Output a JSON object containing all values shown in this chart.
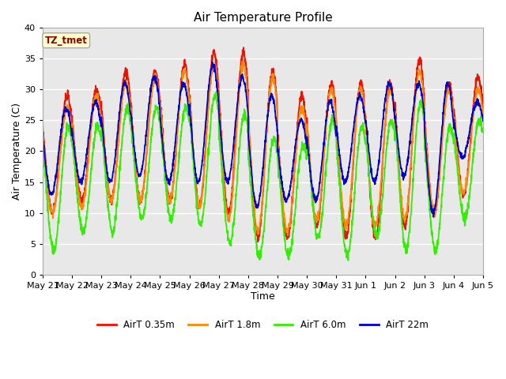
{
  "title": "Air Temperature Profile",
  "xlabel": "Time",
  "ylabel": "Air Temperature (C)",
  "ylim": [
    0,
    40
  ],
  "fig_bg_color": "#ffffff",
  "plot_bg_color": "#e8e8e8",
  "annotation_text": "TZ_tmet",
  "annotation_color": "#8b0000",
  "annotation_bg": "#ffffcc",
  "annotation_border": "#aaaaaa",
  "series_colors": {
    "AirT 0.35m": "#ee1100",
    "AirT 1.8m": "#ff8800",
    "AirT 6.0m": "#33ee00",
    "AirT 22m": "#0000cc"
  },
  "x_tick_labels": [
    "May 21",
    "May 22",
    "May 23",
    "May 24",
    "May 25",
    "May 26",
    "May 27",
    "May 28",
    "May 29",
    "May 30",
    "May 31",
    "Jun 1",
    "Jun 2",
    "Jun 3",
    "Jun 4",
    "Jun 5"
  ],
  "n_days": 15,
  "red_max": [
    29,
    30,
    33,
    33,
    34,
    36,
    36,
    33,
    29,
    31,
    31,
    31,
    35,
    31,
    32
  ],
  "red_min": [
    10,
    12,
    12,
    12,
    12,
    11,
    10,
    6,
    6,
    8,
    6,
    6,
    8,
    10,
    13
  ],
  "ora_max": [
    27,
    29,
    31,
    32,
    33,
    34,
    34,
    32,
    27,
    30,
    30,
    30,
    33,
    30,
    30
  ],
  "ora_min": [
    10,
    11,
    12,
    12,
    12,
    11,
    9,
    7,
    7,
    9,
    8,
    8,
    9,
    10,
    13
  ],
  "grn_max": [
    24,
    24,
    27,
    27,
    27,
    29,
    26,
    22,
    21,
    25,
    24,
    25,
    28,
    24,
    25
  ],
  "grn_min": [
    4,
    7,
    7,
    9,
    9,
    8,
    5,
    3,
    3,
    6,
    3,
    6,
    4,
    4,
    9
  ],
  "blu_max": [
    27,
    28,
    31,
    32,
    31,
    34,
    32,
    29,
    25,
    28,
    29,
    31,
    31,
    31,
    28
  ],
  "blu_min": [
    13,
    15,
    15,
    16,
    15,
    15,
    15,
    11,
    12,
    12,
    15,
    15,
    16,
    10,
    19
  ],
  "red_peak": 0.5833,
  "ora_peak": 0.5833,
  "grn_peak": 0.625,
  "blu_peak": 0.55
}
